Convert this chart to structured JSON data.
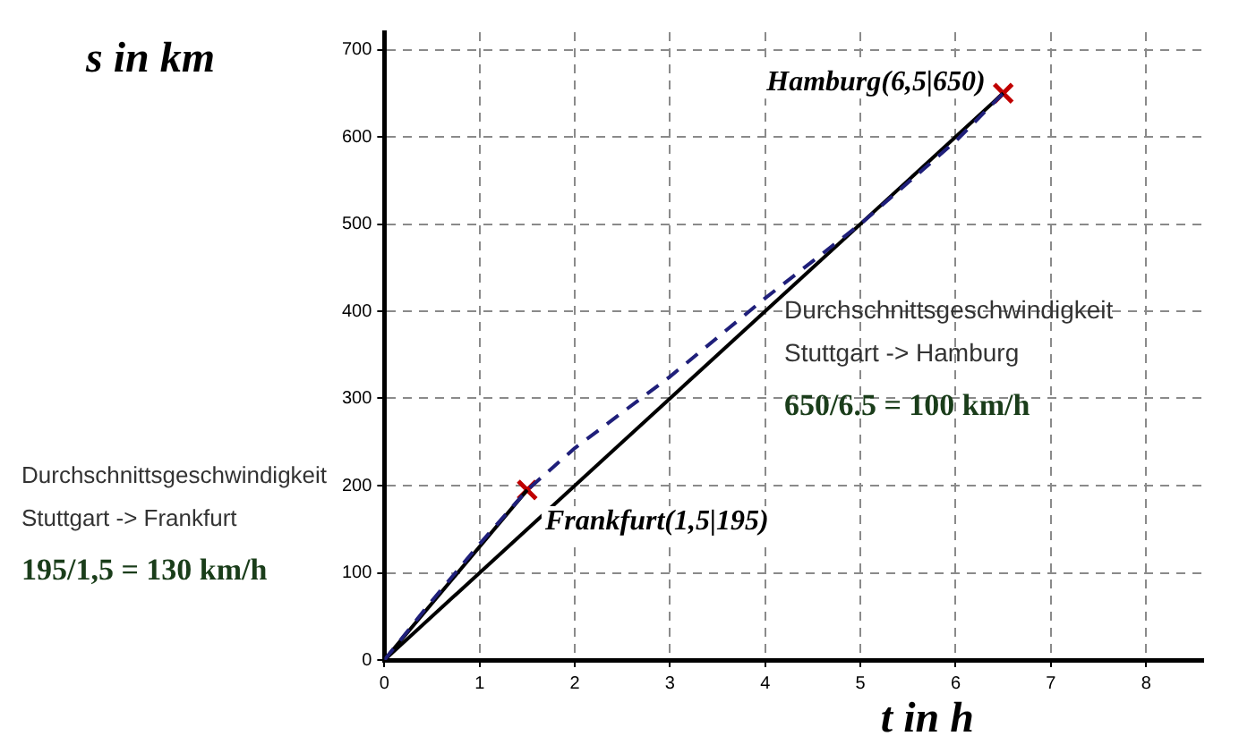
{
  "chart_data": {
    "type": "line",
    "xlabel": "t in h",
    "ylabel": "s in km",
    "xlim": [
      0,
      8.6
    ],
    "xticks": [
      0,
      1,
      2,
      3,
      4,
      5,
      6,
      7,
      8
    ],
    "ylim": [
      0,
      720
    ],
    "yticks": [
      0,
      100,
      200,
      300,
      400,
      500,
      600,
      700
    ],
    "grid": true,
    "legend": false,
    "series": [
      {
        "type": "line",
        "color": "#1f1f7a",
        "line_style": "dashed",
        "marker": "none",
        "x": [
          0,
          0.5,
          1,
          1.5,
          2,
          3,
          4,
          5,
          6,
          6.5
        ],
        "values": [
          0,
          68,
          133,
          195,
          243,
          325,
          415,
          500,
          595,
          650
        ]
      },
      {
        "type": "line",
        "color": "#000000",
        "line_style": "solid",
        "marker": "none",
        "x": [
          0,
          1.5
        ],
        "values": [
          0,
          195
        ]
      },
      {
        "type": "line",
        "color": "#000000",
        "line_style": "solid",
        "marker": "none",
        "x": [
          0,
          6.5
        ],
        "values": [
          0,
          650
        ]
      },
      {
        "type": "scatter",
        "color": "#c00000",
        "marker": "cross",
        "x": [
          1.5,
          6.5
        ],
        "values": [
          195,
          650
        ]
      }
    ],
    "annotations": [
      {
        "text": "Hamburg(6,5|650)",
        "x": 6.5,
        "y": 650
      },
      {
        "text": "Frankfurt(1,5|195)",
        "x": 1.5,
        "y": 195
      },
      "Durchschnittsgeschwindigkeit",
      "Stuttgart -> Hamburg",
      "650/6.5 = 100 km/h",
      "Durchschnittsgeschwindigkeit",
      "Stuttgart -> Frankfurt",
      "195/1,5 = 130 km/h"
    ]
  }
}
